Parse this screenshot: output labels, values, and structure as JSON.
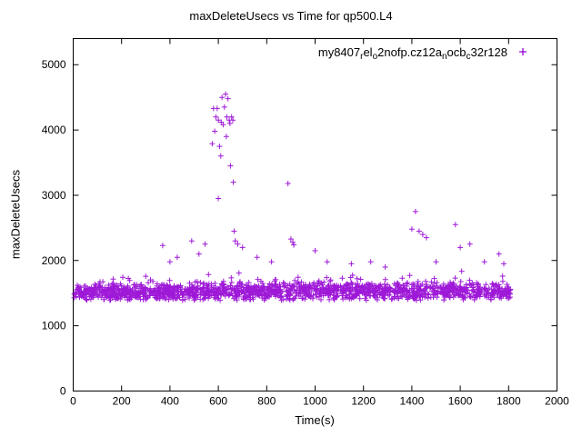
{
  "chart_data": {
    "type": "scatter",
    "title": "maxDeleteUsecs vs Time for qp500.L4",
    "xlabel": "Time(s)",
    "ylabel": "maxDeleteUsecs",
    "xlim": [
      0,
      2000
    ],
    "ylim": [
      0,
      5400
    ],
    "xticks": [
      0,
      200,
      400,
      600,
      800,
      1000,
      1200,
      1400,
      1600,
      1800,
      2000
    ],
    "yticks": [
      0,
      1000,
      2000,
      3000,
      4000,
      5000
    ],
    "grid": false,
    "marker": "plus",
    "marker_color": "#9400D3",
    "legend": {
      "position": "top-right-inside",
      "series_label_plain": "my8407_rel_o2nofp.cz12a_nocb_c32r128",
      "label_segments": [
        {
          "t": "my8407"
        },
        {
          "t": "r",
          "sub": true
        },
        {
          "t": "el"
        },
        {
          "t": "o",
          "sub": true
        },
        {
          "t": "2nofp.cz12a"
        },
        {
          "t": "n",
          "sub": true
        },
        {
          "t": "ocb"
        },
        {
          "t": "c",
          "sub": true
        },
        {
          "t": "32r128"
        }
      ]
    },
    "baseline_band": {
      "description": "dense band of samples",
      "x_min": 3,
      "x_max": 1808,
      "y_center": 1530,
      "y_sigma": 65,
      "y_min": 1390,
      "y_max": 1990,
      "high_tail_prob": 0.03,
      "high_tail_extra": 260,
      "count": 1700,
      "seed": 1337
    },
    "outliers": [
      [
        370,
        2230
      ],
      [
        400,
        1980
      ],
      [
        430,
        2050
      ],
      [
        490,
        2300
      ],
      [
        520,
        2100
      ],
      [
        545,
        2250
      ],
      [
        575,
        3790
      ],
      [
        580,
        4330
      ],
      [
        585,
        3980
      ],
      [
        590,
        4200
      ],
      [
        595,
        4330
      ],
      [
        600,
        4150
      ],
      [
        600,
        2950
      ],
      [
        605,
        3750
      ],
      [
        610,
        3600
      ],
      [
        612,
        4120
      ],
      [
        615,
        4500
      ],
      [
        620,
        4080
      ],
      [
        625,
        4350
      ],
      [
        630,
        4550
      ],
      [
        633,
        3900
      ],
      [
        635,
        4200
      ],
      [
        640,
        4480
      ],
      [
        645,
        4150
      ],
      [
        648,
        4100
      ],
      [
        650,
        3450
      ],
      [
        655,
        4200
      ],
      [
        660,
        4150
      ],
      [
        662,
        3200
      ],
      [
        665,
        2450
      ],
      [
        670,
        2300
      ],
      [
        680,
        2250
      ],
      [
        700,
        2200
      ],
      [
        760,
        2050
      ],
      [
        820,
        1980
      ],
      [
        888,
        3180
      ],
      [
        900,
        2330
      ],
      [
        908,
        2280
      ],
      [
        912,
        2240
      ],
      [
        1000,
        2150
      ],
      [
        1050,
        1980
      ],
      [
        1150,
        1950
      ],
      [
        1230,
        1980
      ],
      [
        1290,
        1900
      ],
      [
        1400,
        2480
      ],
      [
        1415,
        2750
      ],
      [
        1430,
        2450
      ],
      [
        1445,
        2400
      ],
      [
        1460,
        2350
      ],
      [
        1500,
        1980
      ],
      [
        1580,
        2550
      ],
      [
        1600,
        2200
      ],
      [
        1640,
        2250
      ],
      [
        1700,
        1980
      ],
      [
        1760,
        2100
      ],
      [
        1780,
        1950
      ]
    ]
  }
}
